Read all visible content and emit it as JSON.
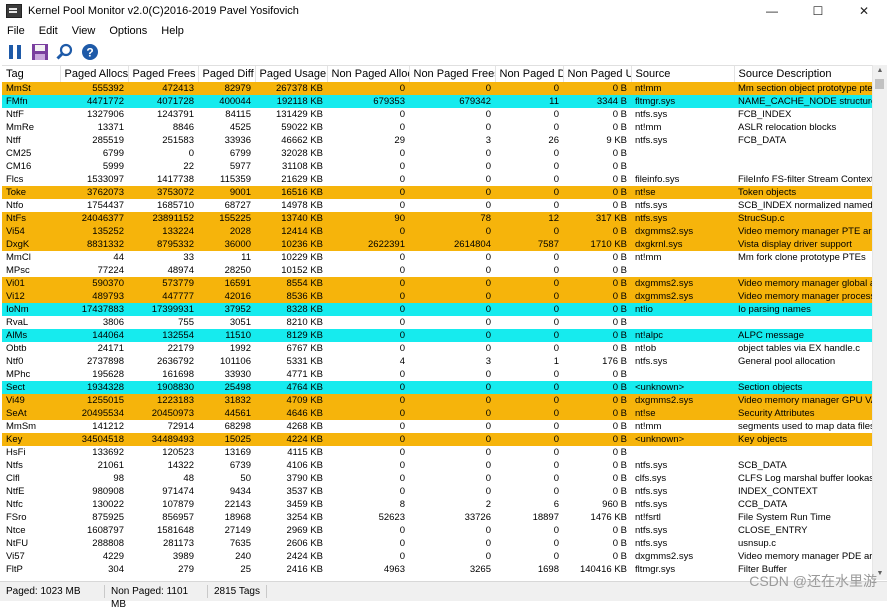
{
  "window": {
    "title": "Kernel Pool Monitor v2.0(C)2016-2019 Pavel Yosifovich"
  },
  "menu": [
    "File",
    "Edit",
    "View",
    "Options",
    "Help"
  ],
  "columns": [
    "Tag",
    "Paged Allocs",
    "Paged Frees",
    "Paged Diff",
    "Paged Usage",
    "Non Paged Allocs",
    "Non Paged Frees",
    "Non Paged Diff",
    "Non Paged Us...",
    "Source",
    "Source Description"
  ],
  "rows": [
    {
      "c": [
        "MmSt",
        "555392",
        "472413",
        "82979",
        "267378 KB",
        "0",
        "0",
        "0",
        "0 B",
        "nt!mm",
        "Mm section object prototype ptes"
      ],
      "hl": "orange"
    },
    {
      "c": [
        "FMfn",
        "4471772",
        "4071728",
        "400044",
        "192118 KB",
        "679353",
        "679342",
        "11",
        "3344 B",
        "fltmgr.sys",
        "NAME_CACHE_NODE structure"
      ],
      "hl": "cyan"
    },
    {
      "c": [
        "NtfF",
        "1327906",
        "1243791",
        "84115",
        "131429 KB",
        "0",
        "0",
        "0",
        "0 B",
        "ntfs.sys",
        "FCB_INDEX"
      ],
      "hl": ""
    },
    {
      "c": [
        "MmRe",
        "13371",
        "8846",
        "4525",
        "59022 KB",
        "0",
        "0",
        "0",
        "0 B",
        "nt!mm",
        "ASLR relocation blocks"
      ],
      "hl": ""
    },
    {
      "c": [
        "Ntff",
        "285519",
        "251583",
        "33936",
        "46662 KB",
        "29",
        "3",
        "26",
        "9 KB",
        "ntfs.sys",
        "FCB_DATA"
      ],
      "hl": ""
    },
    {
      "c": [
        "CM25",
        "6799",
        "0",
        "6799",
        "32028 KB",
        "0",
        "0",
        "0",
        "0 B",
        "",
        ""
      ],
      "hl": ""
    },
    {
      "c": [
        "CM16",
        "5999",
        "22",
        "5977",
        "31108 KB",
        "0",
        "0",
        "0",
        "0 B",
        "",
        ""
      ],
      "hl": ""
    },
    {
      "c": [
        "Flcs",
        "1533097",
        "1417738",
        "115359",
        "21629 KB",
        "0",
        "0",
        "0",
        "0 B",
        "fileinfo.sys",
        "FileInfo FS-filter Stream Context"
      ],
      "hl": ""
    },
    {
      "c": [
        "Toke",
        "3762073",
        "3753072",
        "9001",
        "16516 KB",
        "0",
        "0",
        "0",
        "0 B",
        "nt!se",
        "Token objects"
      ],
      "hl": "orange"
    },
    {
      "c": [
        "Ntfo",
        "1754437",
        "1685710",
        "68727",
        "14978 KB",
        "0",
        "0",
        "0",
        "0 B",
        "ntfs.sys",
        "SCB_INDEX normalized named buffer"
      ],
      "hl": ""
    },
    {
      "c": [
        "NtFs",
        "24046377",
        "23891152",
        "155225",
        "13740 KB",
        "90",
        "78",
        "12",
        "317 KB",
        "ntfs.sys",
        "StrucSup.c"
      ],
      "hl": "orange"
    },
    {
      "c": [
        "Vi54",
        "135252",
        "133224",
        "2028",
        "12414 KB",
        "0",
        "0",
        "0",
        "0 B",
        "dxgmms2.sys",
        "Video memory manager PTE array"
      ],
      "hl": "orange"
    },
    {
      "c": [
        "DxgK",
        "8831332",
        "8795332",
        "36000",
        "10236 KB",
        "2622391",
        "2614804",
        "7587",
        "1710 KB",
        "dxgkrnl.sys",
        "Vista display driver support"
      ],
      "hl": "orange"
    },
    {
      "c": [
        "MmCl",
        "44",
        "33",
        "11",
        "10229 KB",
        "0",
        "0",
        "0",
        "0 B",
        "nt!mm",
        "Mm fork clone prototype PTEs"
      ],
      "hl": ""
    },
    {
      "c": [
        "MPsc",
        "77224",
        "48974",
        "28250",
        "10152 KB",
        "0",
        "0",
        "0",
        "0 B",
        "",
        ""
      ],
      "hl": ""
    },
    {
      "c": [
        "Vi01",
        "590370",
        "573779",
        "16591",
        "8554 KB",
        "0",
        "0",
        "0",
        "0 B",
        "dxgmms2.sys",
        "Video memory manager global alloc"
      ],
      "hl": "orange"
    },
    {
      "c": [
        "Vi12",
        "489793",
        "447777",
        "42016",
        "8536 KB",
        "0",
        "0",
        "0",
        "0 B",
        "dxgmms2.sys",
        "Video memory manager process heap all"
      ],
      "hl": "orange"
    },
    {
      "c": [
        "IoNm",
        "17437883",
        "17399931",
        "37952",
        "8328 KB",
        "0",
        "0",
        "0",
        "0 B",
        "nt!io",
        "Io parsing names"
      ],
      "hl": "cyan"
    },
    {
      "c": [
        "RvaL",
        "3806",
        "755",
        "3051",
        "8210 KB",
        "0",
        "0",
        "0",
        "0 B",
        "",
        ""
      ],
      "hl": ""
    },
    {
      "c": [
        "AlMs",
        "144064",
        "132554",
        "11510",
        "8129 KB",
        "0",
        "0",
        "0",
        "0 B",
        "nt!alpc",
        "ALPC message"
      ],
      "hl": "cyan"
    },
    {
      "c": [
        "Obtb",
        "24171",
        "22179",
        "1992",
        "6767 KB",
        "0",
        "0",
        "0",
        "0 B",
        "nt!ob",
        "object tables via EX handle.c"
      ],
      "hl": ""
    },
    {
      "c": [
        "Ntf0",
        "2737898",
        "2636792",
        "101106",
        "5331 KB",
        "4",
        "3",
        "1",
        "176 B",
        "ntfs.sys",
        "General pool allocation"
      ],
      "hl": ""
    },
    {
      "c": [
        "MPhc",
        "195628",
        "161698",
        "33930",
        "4771 KB",
        "0",
        "0",
        "0",
        "0 B",
        "",
        ""
      ],
      "hl": ""
    },
    {
      "c": [
        "Sect",
        "1934328",
        "1908830",
        "25498",
        "4764 KB",
        "0",
        "0",
        "0",
        "0 B",
        "<unknown>",
        "Section objects"
      ],
      "hl": "cyan"
    },
    {
      "c": [
        "Vi49",
        "1255015",
        "1223183",
        "31832",
        "4709 KB",
        "0",
        "0",
        "0",
        "0 B",
        "dxgmms2.sys",
        "Video memory manager GPU VA"
      ],
      "hl": "orange"
    },
    {
      "c": [
        "SeAt",
        "20495534",
        "20450973",
        "44561",
        "4646 KB",
        "0",
        "0",
        "0",
        "0 B",
        "nt!se",
        "Security Attributes"
      ],
      "hl": "orange"
    },
    {
      "c": [
        "MmSm",
        "141212",
        "72914",
        "68298",
        "4268 KB",
        "0",
        "0",
        "0",
        "0 B",
        "nt!mm",
        "segments used to map data files"
      ],
      "hl": ""
    },
    {
      "c": [
        "Key",
        "34504518",
        "34489493",
        "15025",
        "4224 KB",
        "0",
        "0",
        "0",
        "0 B",
        "<unknown>",
        "Key objects"
      ],
      "hl": "orange"
    },
    {
      "c": [
        "HsFi",
        "133692",
        "120523",
        "13169",
        "4115 KB",
        "0",
        "0",
        "0",
        "0 B",
        "",
        ""
      ],
      "hl": ""
    },
    {
      "c": [
        "Ntfs",
        "21061",
        "14322",
        "6739",
        "4106 KB",
        "0",
        "0",
        "0",
        "0 B",
        "ntfs.sys",
        "SCB_DATA"
      ],
      "hl": ""
    },
    {
      "c": [
        "Clfl",
        "98",
        "48",
        "50",
        "3790 KB",
        "0",
        "0",
        "0",
        "0 B",
        "clfs.sys",
        "CLFS Log marshal buffer lookaside list"
      ],
      "hl": ""
    },
    {
      "c": [
        "NtfE",
        "980908",
        "971474",
        "9434",
        "3537 KB",
        "0",
        "0",
        "0",
        "0 B",
        "ntfs.sys",
        "INDEX_CONTEXT"
      ],
      "hl": ""
    },
    {
      "c": [
        "Ntfc",
        "130022",
        "107879",
        "22143",
        "3459 KB",
        "8",
        "2",
        "6",
        "960 B",
        "ntfs.sys",
        "CCB_DATA"
      ],
      "hl": ""
    },
    {
      "c": [
        "FSro",
        "875925",
        "856957",
        "18968",
        "3254 KB",
        "52623",
        "33726",
        "18897",
        "1476 KB",
        "nt!fsrtl",
        "File System Run Time"
      ],
      "hl": ""
    },
    {
      "c": [
        "Ntce",
        "1608797",
        "1581648",
        "27149",
        "2969 KB",
        "0",
        "0",
        "0",
        "0 B",
        "ntfs.sys",
        "CLOSE_ENTRY"
      ],
      "hl": ""
    },
    {
      "c": [
        "NtFU",
        "288808",
        "281173",
        "7635",
        "2606 KB",
        "0",
        "0",
        "0",
        "0 B",
        "ntfs.sys",
        "usnsup.c"
      ],
      "hl": ""
    },
    {
      "c": [
        "Vi57",
        "4229",
        "3989",
        "240",
        "2424 KB",
        "0",
        "0",
        "0",
        "0 B",
        "dxgmms2.sys",
        "Video memory manager PDE array"
      ],
      "hl": ""
    },
    {
      "c": [
        "FltP",
        "304",
        "279",
        "25",
        "2416 KB",
        "4963",
        "3265",
        "1698",
        "140416 KB",
        "fltmgr.sys",
        "Filter Buffer"
      ],
      "hl": ""
    }
  ],
  "status": {
    "paged": "Paged: 1023 MB",
    "nonpaged": "Non Paged: 1101 MB",
    "tags": "2815 Tags"
  },
  "watermark": "CSDN @还在水里游",
  "colors": {
    "orange": "#f6b40b",
    "cyan": "#16ebee"
  }
}
